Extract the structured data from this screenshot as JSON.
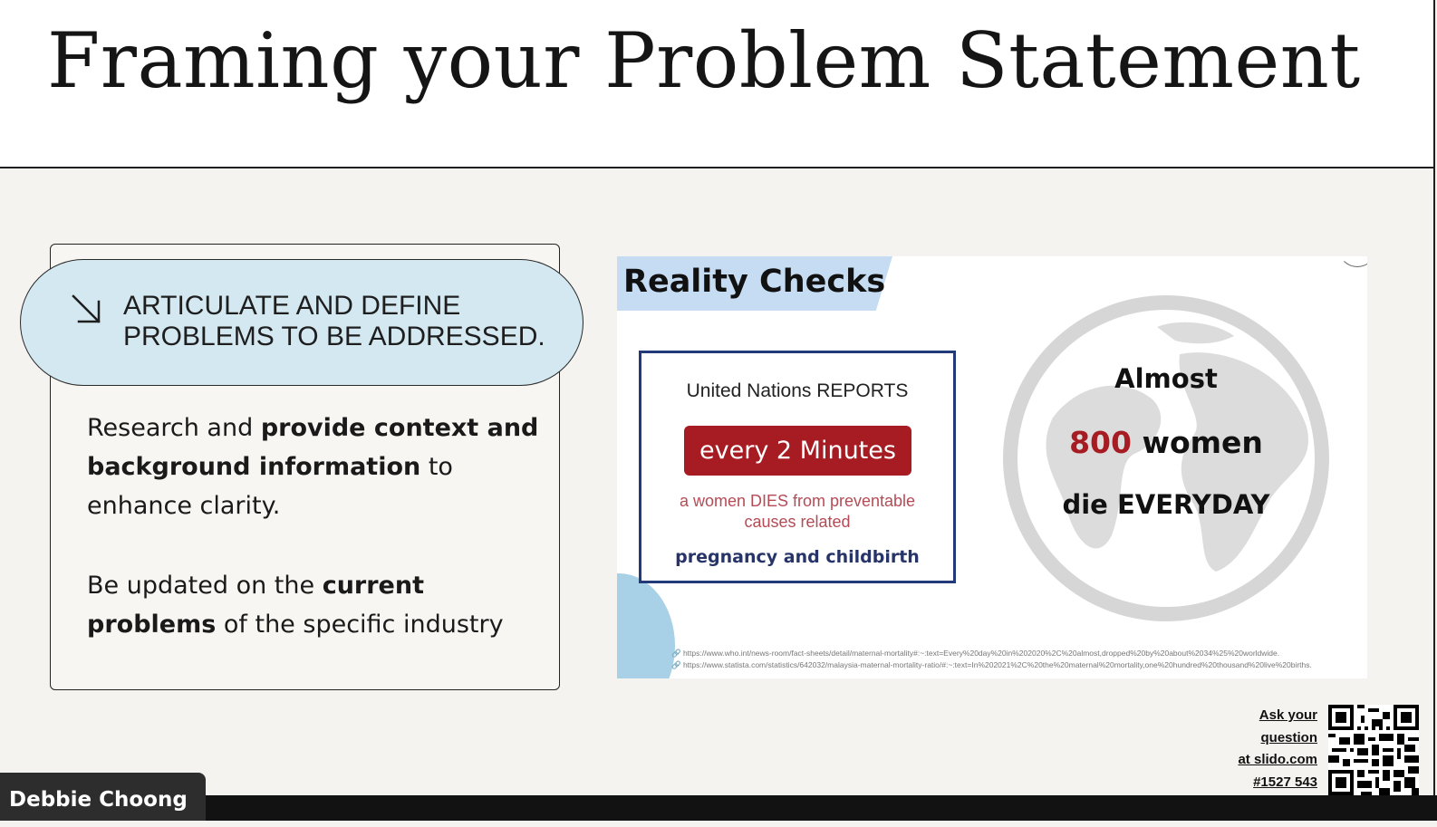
{
  "slide": {
    "title": "Framing your Problem Statement"
  },
  "card": {
    "pill_text": "ARTICULATE AND DEFINE PROBLEMS TO BE ADDRESSED.",
    "arrow_icon": "arrow-down-right-icon",
    "para1": {
      "t1": "Research and ",
      "b1": "provide context and background information",
      "t2": " to enhance clarity."
    },
    "para2": {
      "t1": "Be updated on the ",
      "b1": "current problems",
      "t2": " of the specific industry"
    }
  },
  "reality_check": {
    "title": "Reality Checks",
    "un_box": {
      "header": "United Nations REPORTS",
      "badge": "every 2 Minutes",
      "sub": "a women DIES from preventable causes related",
      "footer": "pregnancy and childbirth"
    },
    "globe": {
      "line1": "Almost",
      "num": "800",
      "line2_rest": " women",
      "line3": "die EVERYDAY"
    },
    "links": [
      "https://www.who.int/news-room/fact-sheets/detail/maternal-mortality#:~:text=Every%20day%20in%202020%2C%20almost,dropped%20by%20about%2034%25%20worldwide.",
      "https://www.statista.com/statistics/642032/malaysia-maternal-mortality-ratio/#:~:text=In%202021%2C%20the%20maternal%20mortality,one%20hundred%20thousand%20live%20births."
    ],
    "colors": {
      "accent_red": "#a61c22",
      "navy": "#223a7a",
      "banner": "#c5dcf3"
    }
  },
  "slido": {
    "lines": [
      "Ask your",
      "question",
      "at slido.com",
      "#1527 543"
    ]
  },
  "presenter": {
    "name": "Debbie Choong"
  }
}
